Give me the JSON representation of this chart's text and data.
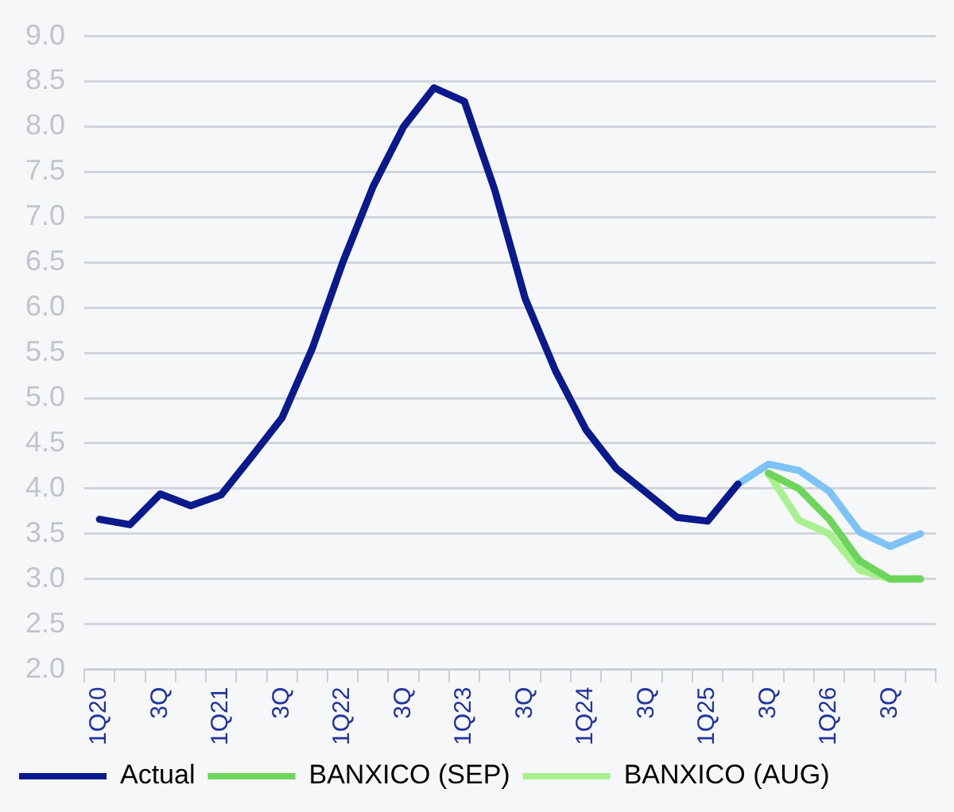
{
  "chart_data": {
    "type": "line",
    "categories": [
      "1Q20",
      null,
      "3Q",
      null,
      "1Q21",
      null,
      "3Q",
      null,
      "1Q22",
      null,
      "3Q",
      null,
      "1Q23",
      null,
      "3Q",
      null,
      "1Q24",
      null,
      "3Q",
      null,
      "1Q25",
      null,
      "3Q",
      null,
      "1Q26",
      null,
      "3Q",
      null
    ],
    "series": [
      {
        "name": "Actual",
        "color": "#0a1a8c",
        "values": [
          3.66,
          3.6,
          3.94,
          3.81,
          3.93,
          4.35,
          4.78,
          5.55,
          6.5,
          7.34,
          8.0,
          8.43,
          8.28,
          7.3,
          6.1,
          5.3,
          4.65,
          4.22,
          3.95,
          3.68,
          3.64,
          4.05,
          null,
          null,
          null,
          null,
          null,
          null
        ]
      },
      {
        "color": "#7ec3f7",
        "values": [
          null,
          null,
          null,
          null,
          null,
          null,
          null,
          null,
          null,
          null,
          null,
          null,
          null,
          null,
          null,
          null,
          null,
          null,
          null,
          null,
          null,
          4.05,
          4.27,
          4.2,
          3.97,
          3.52,
          3.36,
          3.5
        ]
      },
      {
        "name": "BANXICO (SEP)",
        "color": "#6cd65a",
        "values": [
          null,
          null,
          null,
          null,
          null,
          null,
          null,
          null,
          null,
          null,
          null,
          null,
          null,
          null,
          null,
          null,
          null,
          null,
          null,
          null,
          null,
          null,
          4.17,
          4.0,
          3.66,
          3.2,
          3.0,
          3.0
        ]
      },
      {
        "name": "BANXICO (AUG)",
        "color": "#a8f090",
        "values": [
          null,
          null,
          null,
          null,
          null,
          null,
          null,
          null,
          null,
          null,
          null,
          null,
          null,
          null,
          null,
          null,
          null,
          null,
          null,
          null,
          null,
          null,
          4.17,
          3.65,
          3.5,
          3.1,
          3.0,
          3.0
        ]
      }
    ],
    "ylim": [
      2,
      9
    ],
    "yticks": [
      {
        "value": 2,
        "label": "2.0"
      },
      {
        "value": 2.5,
        "label": "2.5"
      },
      {
        "value": 3,
        "label": "3.0"
      },
      {
        "value": 3.5,
        "label": "3.5"
      },
      {
        "value": 4,
        "label": "4.0"
      },
      {
        "value": 4.5,
        "label": "4.5"
      },
      {
        "value": 5,
        "label": "5.0"
      },
      {
        "value": 5.5,
        "label": "5.5"
      },
      {
        "value": 6,
        "label": "6.0"
      },
      {
        "value": 6.5,
        "label": "6.5"
      },
      {
        "value": 7,
        "label": "7.0"
      },
      {
        "value": 7.5,
        "label": "7.5"
      },
      {
        "value": 8,
        "label": "8.0"
      },
      {
        "value": 8.5,
        "label": "8.5"
      },
      {
        "value": 9,
        "label": "9.0"
      }
    ],
    "grid": "y",
    "legend": "bottom",
    "marker": "none",
    "line_style": "solid"
  }
}
